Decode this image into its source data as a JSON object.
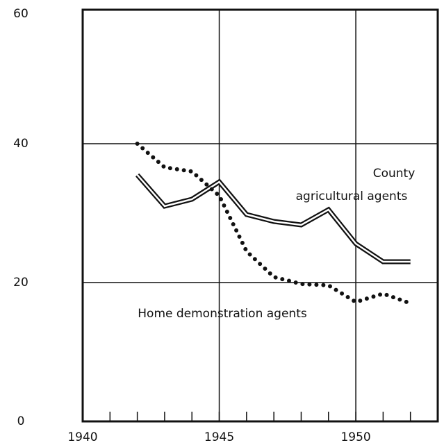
{
  "chart_data": {
    "type": "line",
    "x": [
      1942,
      1943,
      1944,
      1945,
      1946,
      1947,
      1948,
      1949,
      1950,
      1951,
      1952
    ],
    "series": [
      {
        "name": "County agricultural agents",
        "color": "#111111",
        "style": "double",
        "values": [
          35.5,
          31,
          32,
          34.5,
          29.8,
          28.8,
          28.3,
          30.5,
          25.6,
          23,
          23
        ]
      },
      {
        "name": "Home demonstration agents",
        "color": "#111111",
        "style": "dotted",
        "values": [
          40,
          36.6,
          36,
          32.5,
          24.5,
          20.8,
          19.8,
          19.6,
          17.2,
          18.4,
          17
        ]
      }
    ],
    "annotations": [
      "County",
      "agricultural agents",
      "Home demonstration agents"
    ],
    "xlim": [
      1940,
      1953
    ],
    "xticks": [
      1940,
      1945,
      1950
    ],
    "ylim": [
      0,
      60
    ],
    "yticks": [
      0,
      20,
      40,
      60
    ],
    "grid": true
  }
}
